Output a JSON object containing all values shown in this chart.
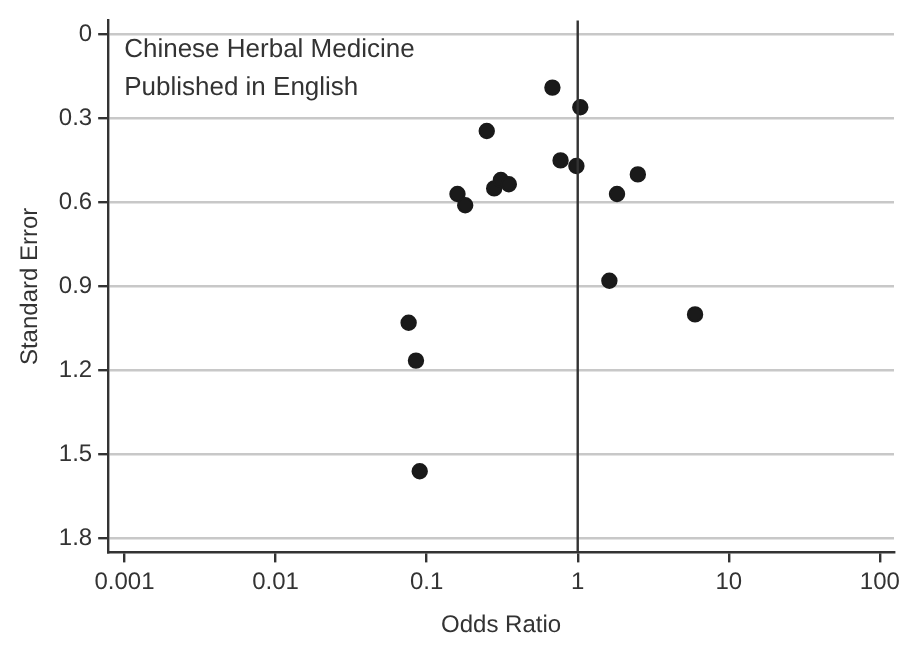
{
  "chart_data": {
    "type": "scatter",
    "xlabel": "Odds Ratio",
    "ylabel": "Standard Error",
    "annotations": [
      "Chinese Herbal Medicine",
      "Published in English"
    ],
    "x": [
      0.68,
      1.04,
      0.25,
      0.77,
      0.98,
      2.5,
      0.16,
      0.18,
      0.28,
      0.31,
      0.35,
      1.82,
      1.62,
      5.98,
      0.076,
      0.085,
      0.09
    ],
    "values": [
      0.19,
      0.26,
      0.345,
      0.45,
      0.47,
      0.5,
      0.57,
      0.61,
      0.55,
      0.52,
      0.535,
      0.57,
      0.88,
      1.0,
      1.03,
      1.165,
      1.56
    ],
    "color": "#1a1a1a",
    "marker": "circle",
    "log": "x",
    "xlim": [
      0.00078,
      124
    ],
    "xticks": [
      0.001,
      0.01,
      0.1,
      1,
      10,
      100
    ],
    "ylim": [
      1.85,
      -0.05
    ],
    "yticks": [
      0,
      0.3,
      0.6,
      0.9,
      1.2,
      1.5,
      1.8
    ],
    "grid": "y",
    "legend": false,
    "ref_lines": [
      {
        "axis": "x",
        "value": 1,
        "color": "#333333"
      }
    ]
  }
}
